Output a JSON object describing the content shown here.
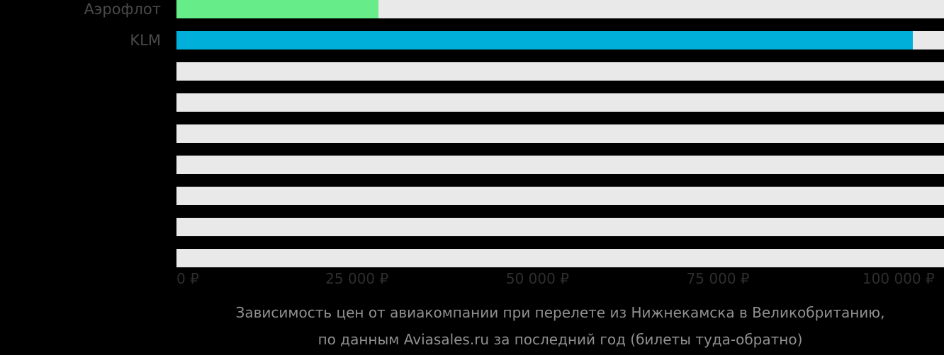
{
  "chart_data": {
    "type": "bar",
    "orientation": "horizontal",
    "title": "",
    "categories": [
      "Аэрофлот",
      "KLM"
    ],
    "values": [
      28000,
      102000
    ],
    "values_estimated": true,
    "unit": "₽",
    "xlabel": "",
    "ylabel": "",
    "xlim": [
      0,
      106300
    ],
    "x_ticks": [
      {
        "value": 0,
        "label": "0 ₽"
      },
      {
        "value": 25000,
        "label": "25 000 ₽"
      },
      {
        "value": 50000,
        "label": "50 000 ₽"
      },
      {
        "value": 75000,
        "label": "75 000 ₽"
      },
      {
        "value": 100000,
        "label": "100 000 ₽"
      }
    ],
    "bar_colors": [
      "#66EC88",
      "#00B0DB"
    ],
    "empty_rows_after": 7,
    "grid": false,
    "legend": false
  },
  "caption": {
    "line1": "Зависимость цен от авиакомпании при перелете из Нижнекамска в Великобританию,",
    "line2": "по данным Aviasales.ru за последний год (билеты туда-обратно)"
  },
  "colors": {
    "background": "#000000",
    "track": "#E9E9E9",
    "bar_green": "#66EC88",
    "bar_cyan": "#00B0DB",
    "category_label": "#4A4A4A",
    "axis_label": "#2E2E2E",
    "caption_text": "#909090"
  }
}
